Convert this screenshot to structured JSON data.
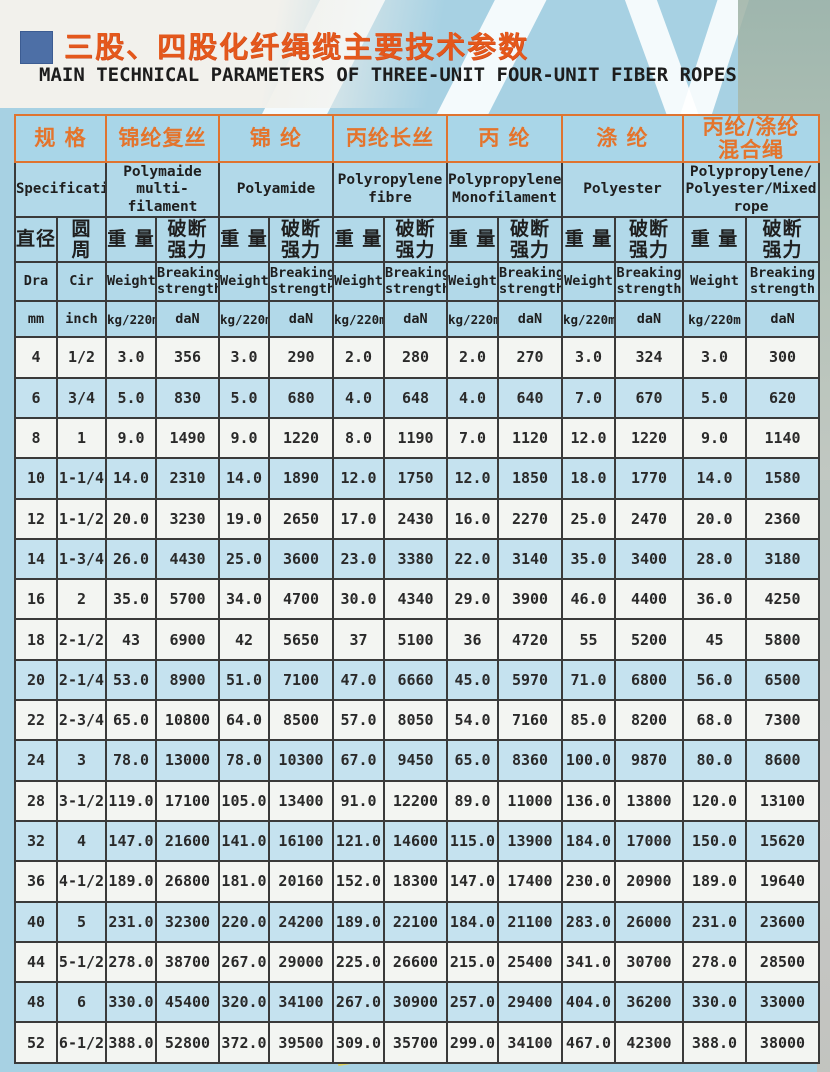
{
  "header": {
    "title_cn": "三股、四股化纤绳缆主要技术参数",
    "title_en": "MAIN TECHNICAL PARAMETERS OF THREE-UNIT FOUR-UNIT FIBER ROPES"
  },
  "table": {
    "spec": {
      "cn": "规 格",
      "en": "Specification"
    },
    "materials": [
      {
        "cn": "锦纶复丝",
        "en": "Polymaide multi-\nfilament"
      },
      {
        "cn": "锦 纶",
        "en": "Polyamide"
      },
      {
        "cn": "丙纶长丝",
        "en": "Polyropylene\nfibre"
      },
      {
        "cn": "丙 纶",
        "en": "Polypropylene\nMonofilament"
      },
      {
        "cn": "涤 纶",
        "en": "Polyester"
      },
      {
        "cn": "丙纶/涤纶\n混合绳",
        "en": "Polypropylene/\nPolyester/Mixed\nrope"
      }
    ],
    "sub": {
      "dia": {
        "cn": "直径",
        "en": "Dra",
        "unit": "mm"
      },
      "cir": {
        "cn": "圆 周",
        "en": "Cir",
        "unit": "inch"
      },
      "weight": {
        "cn": "重 量",
        "en": "Weight",
        "unit": "kg/220m"
      },
      "strength": {
        "cn": "破断\n强力",
        "en": "Breaking\nstrength",
        "unit": "daN"
      }
    },
    "rows": [
      {
        "dia": "4",
        "cir": "1/2",
        "shaded": false,
        "values": [
          "3.0",
          "356",
          "3.0",
          "290",
          "2.0",
          "280",
          "2.0",
          "270",
          "3.0",
          "324",
          "3.0",
          "300"
        ]
      },
      {
        "dia": "6",
        "cir": "3/4",
        "shaded": true,
        "values": [
          "5.0",
          "830",
          "5.0",
          "680",
          "4.0",
          "648",
          "4.0",
          "640",
          "7.0",
          "670",
          "5.0",
          "620"
        ]
      },
      {
        "dia": "8",
        "cir": "1",
        "shaded": false,
        "values": [
          "9.0",
          "1490",
          "9.0",
          "1220",
          "8.0",
          "1190",
          "7.0",
          "1120",
          "12.0",
          "1220",
          "9.0",
          "1140"
        ]
      },
      {
        "dia": "10",
        "cir": "1-1/4",
        "shaded": true,
        "values": [
          "14.0",
          "2310",
          "14.0",
          "1890",
          "12.0",
          "1750",
          "12.0",
          "1850",
          "18.0",
          "1770",
          "14.0",
          "1580"
        ]
      },
      {
        "dia": "12",
        "cir": "1-1/2",
        "shaded": false,
        "values": [
          "20.0",
          "3230",
          "19.0",
          "2650",
          "17.0",
          "2430",
          "16.0",
          "2270",
          "25.0",
          "2470",
          "20.0",
          "2360"
        ]
      },
      {
        "dia": "14",
        "cir": "1-3/4",
        "shaded": true,
        "values": [
          "26.0",
          "4430",
          "25.0",
          "3600",
          "23.0",
          "3380",
          "22.0",
          "3140",
          "35.0",
          "3400",
          "28.0",
          "3180"
        ]
      },
      {
        "dia": "16",
        "cir": "2",
        "shaded": false,
        "values": [
          "35.0",
          "5700",
          "34.0",
          "4700",
          "30.0",
          "4340",
          "29.0",
          "3900",
          "46.0",
          "4400",
          "36.0",
          "4250"
        ]
      },
      {
        "dia": "18",
        "cir": "2-1/2",
        "shaded": false,
        "values": [
          "43",
          "6900",
          "42",
          "5650",
          "37",
          "5100",
          "36",
          "4720",
          "55",
          "5200",
          "45",
          "5800"
        ]
      },
      {
        "dia": "20",
        "cir": "2-1/4",
        "shaded": true,
        "values": [
          "53.0",
          "8900",
          "51.0",
          "7100",
          "47.0",
          "6660",
          "45.0",
          "5970",
          "71.0",
          "6800",
          "56.0",
          "6500"
        ]
      },
      {
        "dia": "22",
        "cir": "2-3/4",
        "shaded": false,
        "values": [
          "65.0",
          "10800",
          "64.0",
          "8500",
          "57.0",
          "8050",
          "54.0",
          "7160",
          "85.0",
          "8200",
          "68.0",
          "7300"
        ]
      },
      {
        "dia": "24",
        "cir": "3",
        "shaded": true,
        "values": [
          "78.0",
          "13000",
          "78.0",
          "10300",
          "67.0",
          "9450",
          "65.0",
          "8360",
          "100.0",
          "9870",
          "80.0",
          "8600"
        ]
      },
      {
        "dia": "28",
        "cir": "3-1/2",
        "shaded": false,
        "values": [
          "119.0",
          "17100",
          "105.0",
          "13400",
          "91.0",
          "12200",
          "89.0",
          "11000",
          "136.0",
          "13800",
          "120.0",
          "13100"
        ]
      },
      {
        "dia": "32",
        "cir": "4",
        "shaded": true,
        "values": [
          "147.0",
          "21600",
          "141.0",
          "16100",
          "121.0",
          "14600",
          "115.0",
          "13900",
          "184.0",
          "17000",
          "150.0",
          "15620"
        ]
      },
      {
        "dia": "36",
        "cir": "4-1/2",
        "shaded": false,
        "values": [
          "189.0",
          "26800",
          "181.0",
          "20160",
          "152.0",
          "18300",
          "147.0",
          "17400",
          "230.0",
          "20900",
          "189.0",
          "19640"
        ]
      },
      {
        "dia": "40",
        "cir": "5",
        "shaded": true,
        "values": [
          "231.0",
          "32300",
          "220.0",
          "24200",
          "189.0",
          "22100",
          "184.0",
          "21100",
          "283.0",
          "26000",
          "231.0",
          "23600"
        ]
      },
      {
        "dia": "44",
        "cir": "5-1/2",
        "shaded": false,
        "values": [
          "278.0",
          "38700",
          "267.0",
          "29000",
          "225.0",
          "26600",
          "215.0",
          "25400",
          "341.0",
          "30700",
          "278.0",
          "28500"
        ]
      },
      {
        "dia": "48",
        "cir": "6",
        "shaded": true,
        "values": [
          "330.0",
          "45400",
          "320.0",
          "34100",
          "267.0",
          "30900",
          "257.0",
          "29400",
          "404.0",
          "36200",
          "330.0",
          "33000"
        ]
      },
      {
        "dia": "52",
        "cir": "6-1/2",
        "shaded": false,
        "values": [
          "388.0",
          "52800",
          "372.0",
          "39500",
          "309.0",
          "35700",
          "299.0",
          "34100",
          "467.0",
          "42300",
          "388.0",
          "38000"
        ]
      }
    ]
  },
  "colors": {
    "accent_orange": "#e4742c",
    "title_orange": "#e4581c",
    "square_blue": "#4d6fa6",
    "page_blue": "#a7d1e3",
    "header_blue": "#b2d9e9",
    "row_blue": "#c5e2ef",
    "row_white": "#f3f5f2"
  }
}
